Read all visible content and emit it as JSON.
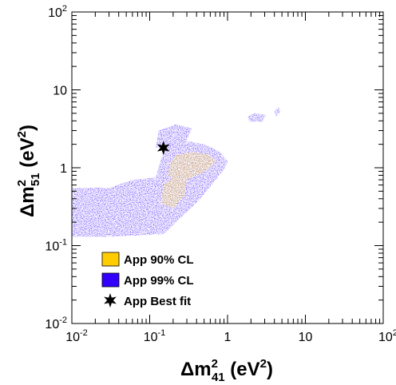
{
  "chart_data": {
    "type": "scatter",
    "xscale": "log",
    "yscale": "log",
    "xlim": [
      0.01,
      100
    ],
    "ylim": [
      0.01,
      100
    ],
    "x_ticks": [
      {
        "value": 0.01,
        "base": "10",
        "exp": "-2"
      },
      {
        "value": 0.1,
        "base": "10",
        "exp": "-1"
      },
      {
        "value": 1,
        "base": "1",
        "exp": ""
      },
      {
        "value": 10,
        "base": "10",
        "exp": ""
      },
      {
        "value": 100,
        "base": "10",
        "exp": "2"
      }
    ],
    "y_ticks": [
      {
        "value": 0.01,
        "base": "10",
        "exp": "-2"
      },
      {
        "value": 0.1,
        "base": "10",
        "exp": "-1"
      },
      {
        "value": 1,
        "base": "1",
        "exp": ""
      },
      {
        "value": 10,
        "base": "10",
        "exp": ""
      },
      {
        "value": 100,
        "base": "10",
        "exp": "2"
      }
    ],
    "xlabel": {
      "main": "Δm",
      "sup": "2",
      "sub": "41",
      "unit": " (eV",
      "unit_sup": "2",
      "close": ")"
    },
    "ylabel": {
      "main": "Δm",
      "sup": "2",
      "sub": "51",
      "unit": " (eV",
      "unit_sup": "2",
      "close": ")"
    },
    "series": [
      {
        "name": "App 99% CL",
        "color": "#3300ff",
        "kind": "region",
        "polygons": [
          [
            [
              0.01,
              0.13
            ],
            [
              0.03,
              0.13
            ],
            [
              0.15,
              0.14
            ],
            [
              0.45,
              0.4
            ],
            [
              0.9,
              0.95
            ],
            [
              1.0,
              1.2
            ],
            [
              0.8,
              1.6
            ],
            [
              0.5,
              2.0
            ],
            [
              0.25,
              2.3
            ],
            [
              0.17,
              2.0
            ],
            [
              0.14,
              1.3
            ],
            [
              0.12,
              0.75
            ],
            [
              0.06,
              0.7
            ],
            [
              0.03,
              0.55
            ],
            [
              0.01,
              0.55
            ]
          ],
          [
            [
              0.12,
              1.8
            ],
            [
              0.3,
              2.3
            ],
            [
              0.35,
              3.2
            ],
            [
              0.22,
              3.6
            ],
            [
              0.13,
              3.0
            ]
          ],
          [
            [
              1.9,
              3.9
            ],
            [
              2.8,
              3.9
            ],
            [
              3.1,
              4.8
            ],
            [
              2.2,
              5.0
            ],
            [
              1.8,
              4.5
            ]
          ],
          [
            [
              4.2,
              4.6
            ],
            [
              4.8,
              5.2
            ],
            [
              4.5,
              6.0
            ],
            [
              4.0,
              5.3
            ]
          ]
        ]
      },
      {
        "name": "App 90% CL",
        "color": "#ffcc00",
        "kind": "region",
        "polygons": [
          [
            [
              0.17,
              0.8
            ],
            [
              0.26,
              0.65
            ],
            [
              0.4,
              0.8
            ],
            [
              0.6,
              1.0
            ],
            [
              0.72,
              1.25
            ],
            [
              0.55,
              1.5
            ],
            [
              0.35,
              1.6
            ],
            [
              0.22,
              1.45
            ],
            [
              0.18,
              1.15
            ]
          ],
          [
            [
              0.14,
              0.35
            ],
            [
              0.2,
              0.3
            ],
            [
              0.28,
              0.45
            ],
            [
              0.3,
              0.7
            ],
            [
              0.2,
              0.75
            ],
            [
              0.15,
              0.6
            ]
          ]
        ]
      },
      {
        "name": "App Best fit",
        "kind": "point",
        "x": 0.15,
        "y": 1.8
      }
    ],
    "legend": {
      "position": "bottom-left",
      "entries": [
        "App 90% CL",
        "App 99% CL",
        "App Best fit"
      ]
    },
    "grid": false
  }
}
